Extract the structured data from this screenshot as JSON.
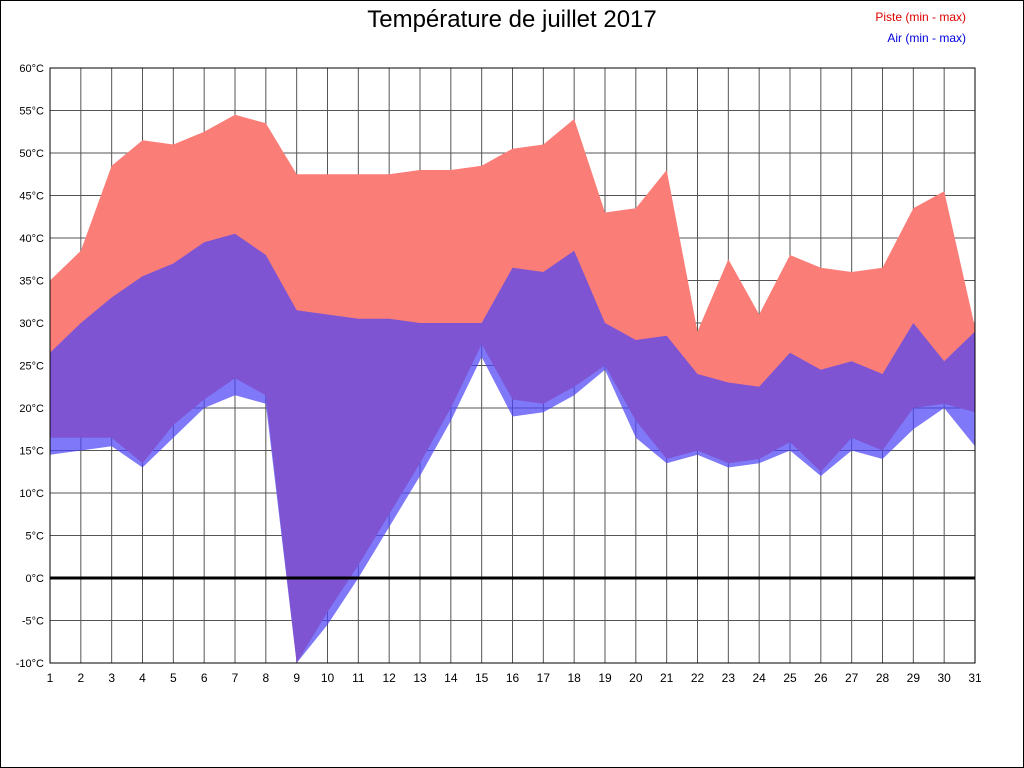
{
  "page": {
    "title": "Température de juillet 2017",
    "legend": [
      {
        "label": "Piste (min - max)",
        "color": "#dd0000"
      },
      {
        "label": "Air (min - max)",
        "color": "#0000dd"
      }
    ]
  },
  "chart_data": {
    "type": "area",
    "title": "Température de juillet 2017",
    "xlabel": "",
    "ylabel": "",
    "ylim": [
      -10,
      60
    ],
    "ytick_step": 5,
    "ytick_suffix": "°C",
    "grid": true,
    "legend_position": "top-right",
    "x": [
      1,
      2,
      3,
      4,
      5,
      6,
      7,
      8,
      9,
      10,
      11,
      12,
      13,
      14,
      15,
      16,
      17,
      18,
      19,
      20,
      21,
      22,
      23,
      24,
      25,
      26,
      27,
      28,
      29,
      30,
      31
    ],
    "series": [
      {
        "name": "Piste max",
        "values": [
          35,
          38.5,
          48.5,
          51.5,
          51,
          52.5,
          54.5,
          53.5,
          47.5,
          47.5,
          47.5,
          47.5,
          48,
          48,
          48.5,
          50.5,
          51,
          54,
          43,
          43.5,
          48,
          29,
          37.5,
          31,
          38,
          36.5,
          36,
          36.5,
          43.5,
          45.5,
          29.5
        ]
      },
      {
        "name": "Piste min",
        "values": [
          16.5,
          16.5,
          16.5,
          13.5,
          18,
          21,
          23.5,
          21.5,
          -10,
          -4,
          1.5,
          7.5,
          13.5,
          20,
          27.5,
          21,
          20.5,
          22.5,
          25,
          18.5,
          14,
          15,
          13.5,
          14,
          16,
          12.5,
          16.5,
          15,
          20,
          20.5,
          19.5
        ]
      },
      {
        "name": "Air max",
        "values": [
          26.5,
          30,
          33,
          35.5,
          37,
          39.5,
          40.5,
          38,
          31.5,
          31,
          30.5,
          30.5,
          30,
          30,
          30,
          36.5,
          36,
          38.5,
          30,
          28,
          28.5,
          24,
          23,
          22.5,
          26.5,
          24.5,
          25.5,
          24,
          30,
          25.5,
          29
        ]
      },
      {
        "name": "Air min",
        "values": [
          14.5,
          15,
          15.5,
          13,
          16.5,
          20,
          21.5,
          20.5,
          -10,
          -5.5,
          0,
          6,
          12,
          18.5,
          26,
          19,
          19.5,
          21.5,
          24.5,
          16.5,
          13.5,
          14.5,
          13,
          13.5,
          15,
          12,
          15,
          14,
          17.5,
          20,
          15.5
        ]
      }
    ],
    "colors": {
      "piste_fill": "#FB7D78",
      "air_fill": "rgba(77,68,245,0.72)",
      "grid": "#555555",
      "zero_line": "#000000",
      "axis": "#000000",
      "tick_text": "#000000"
    }
  }
}
